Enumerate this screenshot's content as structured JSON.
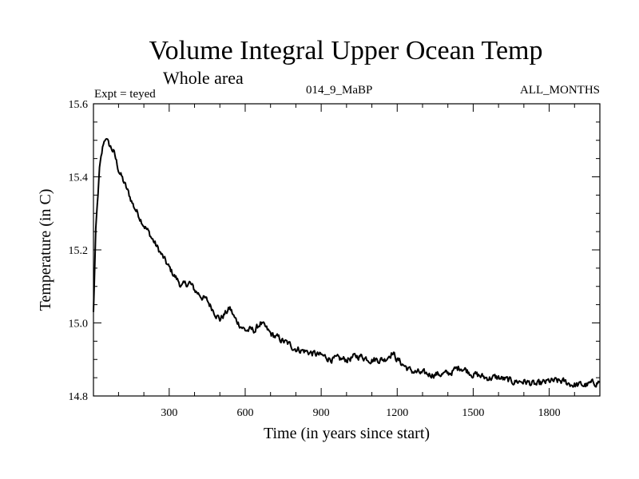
{
  "chart_data": {
    "type": "line",
    "title": "Volume Integral Upper Ocean Temp",
    "subtitle": "Whole area",
    "experiment_label": "Expt = teyed",
    "run_label": "014_9_MaBP",
    "period_label": "ALL_MONTHS",
    "xlabel": "Time (in years since start)",
    "ylabel": "Temperature (in C)",
    "xlim": [
      1,
      2000
    ],
    "ylim": [
      14.8,
      15.6
    ],
    "xticks": [
      300,
      600,
      900,
      1200,
      1500,
      1800
    ],
    "xtick_labels": [
      "300",
      "600",
      "900",
      "1200",
      "1500",
      "1800"
    ],
    "yticks": [
      14.8,
      15.0,
      15.2,
      15.4,
      15.6
    ],
    "ytick_labels": [
      "14.8",
      "15.0",
      "15.2",
      "15.4",
      "15.6"
    ],
    "grid": false,
    "series": [
      {
        "name": "Volume Integral Upper Ocean Temp",
        "color": "#000000",
        "x": [
          1,
          10,
          25,
          40,
          50,
          60,
          80,
          100,
          130,
          160,
          200,
          250,
          300,
          350,
          380,
          400,
          450,
          500,
          540,
          560,
          600,
          640,
          660,
          700,
          750,
          800,
          850,
          900,
          950,
          1000,
          1050,
          1100,
          1150,
          1180,
          1200,
          1250,
          1300,
          1350,
          1400,
          1450,
          1500,
          1550,
          1600,
          1650,
          1700,
          1750,
          1800,
          1850,
          1900,
          1950,
          2000
        ],
        "y": [
          15.03,
          15.25,
          15.42,
          15.49,
          15.51,
          15.49,
          15.47,
          15.42,
          15.37,
          15.32,
          15.27,
          15.21,
          15.15,
          15.1,
          15.11,
          15.09,
          15.06,
          15.01,
          15.04,
          15.01,
          14.98,
          14.98,
          15.0,
          14.97,
          14.95,
          14.93,
          14.92,
          14.91,
          14.9,
          14.9,
          14.91,
          14.9,
          14.9,
          14.92,
          14.9,
          14.87,
          14.86,
          14.86,
          14.86,
          14.88,
          14.86,
          14.85,
          14.85,
          14.84,
          14.84,
          14.83,
          14.84,
          14.84,
          14.83,
          14.83,
          14.84
        ]
      }
    ]
  }
}
